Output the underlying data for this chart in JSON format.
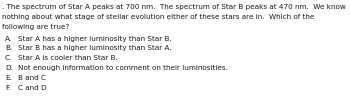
{
  "lines": [
    ". The spectrum of Star A peaks at 700 nm.  The spectrum of Star B peaks at 470 nm.  We know",
    "nothing about what stage of stellar evolution either of these stars are in.  Which of the",
    "following are true?"
  ],
  "options": [
    [
      "A.",
      "Star A has a higher luminosity than Star B."
    ],
    [
      "B.",
      "Star B has a higher luminosity than Star A."
    ],
    [
      "C.",
      "Star A is cooler than Star B."
    ],
    [
      "D.",
      "Not enough information to comment on their luminosities."
    ],
    [
      "E.",
      "B and C"
    ],
    [
      "F.",
      "C and D"
    ]
  ],
  "font_size": 5.2,
  "font_family": "DejaVu Sans",
  "text_color": "#1a1a1a",
  "background_color": "#ffffff",
  "fig_width": 3.5,
  "fig_height": 0.96,
  "dpi": 100
}
